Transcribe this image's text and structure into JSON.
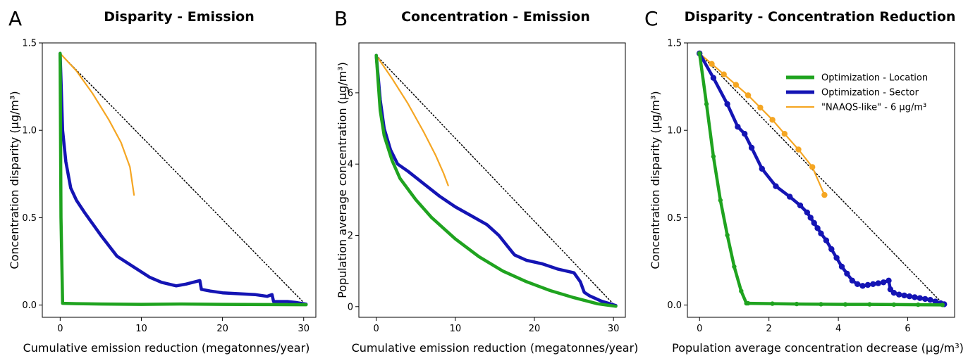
{
  "colors": {
    "location": "#1fa31f",
    "sector": "#1414b4",
    "naaqs": "#f5a623",
    "diagonal": "#000000"
  },
  "chart_data": [
    {
      "type": "line",
      "panel": "A",
      "title": "Disparity - Emission",
      "xlabel": "Cumulative emission reduction (megatonnes/year)",
      "ylabel": "Concentration disparity (μg/m³)",
      "xlim": [
        -2.2,
        31.5
      ],
      "ylim": [
        -0.07,
        1.5
      ],
      "xticks": [
        0,
        10,
        20,
        30
      ],
      "xticklabels": [
        "0",
        "10",
        "20",
        "30"
      ],
      "yticks": [
        0,
        0.5,
        1.0,
        1.5
      ],
      "yticklabels": [
        "0.0",
        "0.5",
        "1.0",
        "1.5"
      ],
      "grid": false,
      "series": [
        {
          "key": "diagonal",
          "style": "dotted",
          "x": [
            0,
            30.3
          ],
          "y": [
            1.44,
            0.0
          ]
        },
        {
          "key": "naaqs",
          "x": [
            0,
            2,
            4,
            6,
            7.5,
            8.6,
            9.1
          ],
          "y": [
            1.44,
            1.34,
            1.21,
            1.06,
            0.93,
            0.79,
            0.63
          ]
        },
        {
          "key": "sector",
          "x": [
            0,
            0.3,
            0.7,
            1.3,
            2,
            3,
            5,
            7,
            9,
            11,
            12.5,
            14.3,
            15.5,
            17.2,
            17.4,
            18.5,
            20,
            22,
            24,
            25.5,
            26.1,
            26.3,
            27,
            28,
            29,
            30.3
          ],
          "y": [
            1.44,
            1.0,
            0.82,
            0.67,
            0.6,
            0.53,
            0.4,
            0.28,
            0.22,
            0.16,
            0.13,
            0.11,
            0.12,
            0.14,
            0.09,
            0.08,
            0.07,
            0.065,
            0.06,
            0.05,
            0.06,
            0.02,
            0.02,
            0.02,
            0.015,
            0.005
          ]
        },
        {
          "key": "location",
          "x": [
            0,
            0.1,
            0.3,
            2,
            5,
            10,
            15,
            20,
            25,
            30.3
          ],
          "y": [
            1.44,
            0.5,
            0.01,
            0.008,
            0.006,
            0.004,
            0.006,
            0.004,
            0.003,
            0.002
          ]
        }
      ]
    },
    {
      "type": "line",
      "panel": "B",
      "title": "Concentration - Emission",
      "xlabel": "Cumulative emission reduction (megatonnes/year)",
      "ylabel": "Population average concentration (μg/m³)",
      "xlim": [
        -2.2,
        31.5
      ],
      "ylim": [
        -0.3,
        7.4
      ],
      "xticks": [
        0,
        10,
        20,
        30
      ],
      "xticklabels": [
        "0",
        "10",
        "20",
        "30"
      ],
      "yticks": [
        0,
        2,
        4,
        6
      ],
      "yticklabels": [
        "0",
        "2",
        "4",
        "6"
      ],
      "grid": false,
      "series": [
        {
          "key": "diagonal",
          "style": "dotted",
          "x": [
            0,
            30.3
          ],
          "y": [
            7.05,
            0.0
          ]
        },
        {
          "key": "naaqs",
          "x": [
            0,
            2,
            4,
            6,
            7.5,
            8.5,
            9.1
          ],
          "y": [
            7.05,
            6.4,
            5.7,
            4.9,
            4.25,
            3.75,
            3.4
          ]
        },
        {
          "key": "sector",
          "x": [
            0,
            0.5,
            1,
            1.8,
            2.7,
            4,
            6,
            8,
            10,
            12,
            14,
            15.5,
            17.3,
            17.5,
            19,
            21,
            23,
            25,
            25.8,
            26.3,
            27,
            28.5,
            30.3
          ],
          "y": [
            7.05,
            5.8,
            5.0,
            4.4,
            4.0,
            3.8,
            3.45,
            3.1,
            2.8,
            2.55,
            2.3,
            2.0,
            1.5,
            1.45,
            1.3,
            1.2,
            1.05,
            0.95,
            0.7,
            0.4,
            0.3,
            0.15,
            0.03
          ]
        },
        {
          "key": "location",
          "x": [
            0,
            0.5,
            1,
            2,
            3,
            5,
            7,
            10,
            13,
            16,
            19,
            22,
            25,
            28,
            30.3
          ],
          "y": [
            7.05,
            5.5,
            4.8,
            4.1,
            3.6,
            3.0,
            2.5,
            1.9,
            1.4,
            1.0,
            0.7,
            0.45,
            0.25,
            0.08,
            0.01
          ]
        }
      ]
    },
    {
      "type": "line",
      "panel": "C",
      "title": "Disparity - Concentration Reduction",
      "xlabel": "Population average concentration decrease (μg/m³)",
      "ylabel": "Concentration disparity (μg/m³)",
      "xlim": [
        -0.35,
        7.35
      ],
      "ylim": [
        -0.07,
        1.5
      ],
      "xticks": [
        0,
        2,
        4,
        6
      ],
      "xticklabels": [
        "0",
        "2",
        "4",
        "6"
      ],
      "yticks": [
        0,
        0.5,
        1.0,
        1.5
      ],
      "yticklabels": [
        "0.0",
        "0.5",
        "1.0",
        "1.5"
      ],
      "grid": false,
      "legend": {
        "position": "top-right"
      },
      "series": [
        {
          "key": "diagonal",
          "style": "dotted",
          "x": [
            0,
            7.05
          ],
          "y": [
            1.44,
            0.0
          ]
        },
        {
          "key": "naaqs",
          "name": "\"NAAQS-like\" - 6 μg/m³",
          "markers": true,
          "x": [
            0,
            0.35,
            0.7,
            1.05,
            1.4,
            1.75,
            2.1,
            2.45,
            2.85,
            3.25,
            3.6
          ],
          "y": [
            1.44,
            1.38,
            1.32,
            1.26,
            1.2,
            1.13,
            1.06,
            0.98,
            0.89,
            0.79,
            0.63
          ]
        },
        {
          "key": "sector",
          "name": "Optimization - Sector",
          "markers": true,
          "x": [
            0,
            0.4,
            0.8,
            1.1,
            1.3,
            1.5,
            1.8,
            2.2,
            2.6,
            2.9,
            3.1,
            3.2,
            3.3,
            3.4,
            3.5,
            3.65,
            3.8,
            3.95,
            4.1,
            4.25,
            4.4,
            4.55,
            4.7,
            4.85,
            5.0,
            5.15,
            5.3,
            5.45,
            5.5,
            5.6,
            5.75,
            5.9,
            6.05,
            6.2,
            6.35,
            6.5,
            6.65,
            6.8,
            6.95,
            7.05
          ],
          "y": [
            1.44,
            1.3,
            1.15,
            1.02,
            0.98,
            0.9,
            0.78,
            0.68,
            0.62,
            0.57,
            0.53,
            0.5,
            0.47,
            0.44,
            0.41,
            0.37,
            0.32,
            0.27,
            0.22,
            0.18,
            0.14,
            0.12,
            0.11,
            0.115,
            0.12,
            0.125,
            0.13,
            0.14,
            0.09,
            0.07,
            0.06,
            0.055,
            0.05,
            0.045,
            0.04,
            0.035,
            0.03,
            0.02,
            0.01,
            0.005
          ]
        },
        {
          "key": "location",
          "name": "Optimization - Location",
          "markers": true,
          "x": [
            0,
            0.2,
            0.4,
            0.6,
            0.8,
            1.0,
            1.2,
            1.35,
            1.4,
            2.1,
            2.8,
            3.5,
            4.2,
            4.9,
            5.6,
            6.3,
            7.0
          ],
          "y": [
            1.44,
            1.15,
            0.85,
            0.6,
            0.4,
            0.22,
            0.08,
            0.01,
            0.01,
            0.008,
            0.006,
            0.005,
            0.004,
            0.004,
            0.003,
            0.002,
            0.001
          ]
        }
      ]
    }
  ]
}
